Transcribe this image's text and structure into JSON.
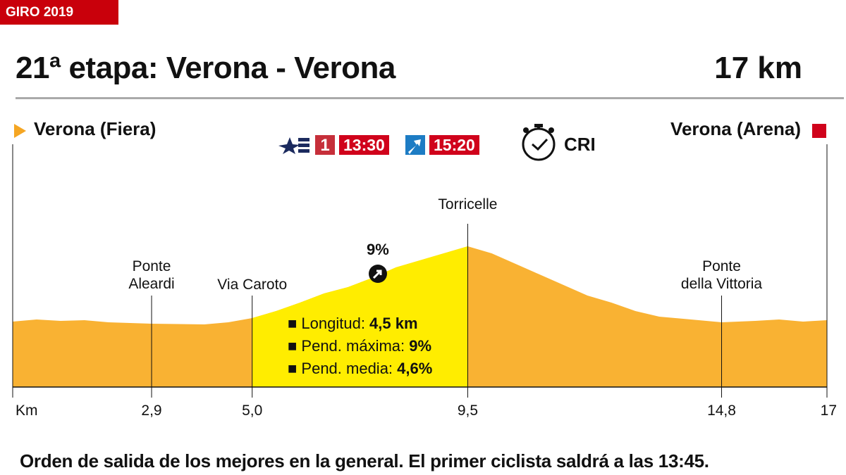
{
  "header": {
    "tag": "GIRO 2019",
    "title": "21ª etapa: Verona - Verona",
    "distance": "17 km"
  },
  "start": "Verona (Fiera)",
  "finish": "Verona (Arena)",
  "tv": {
    "channel1_time": "13:30",
    "channel2_time": "15:20",
    "stage_type": "CRI"
  },
  "colors": {
    "profile": "#f9b233",
    "climb": "#ffed00",
    "red": "#d0021b",
    "start_marker": "#f5a623"
  },
  "climb": {
    "gradient_label": "9%",
    "items": [
      {
        "label": "Longitud: ",
        "value": "4,5 km"
      },
      {
        "label": "Pend. máxima: ",
        "value": "9%"
      },
      {
        "label": "Pend. media: ",
        "value": "4,6%"
      }
    ]
  },
  "footer": "Orden de salida de los mejores en la general. El primer ciclista saldrá a las 13:45.",
  "chart_data": {
    "type": "area",
    "xlabel": "Km",
    "xlim": [
      0,
      17
    ],
    "x_ticks": [
      "2,9",
      "5,0",
      "9,5",
      "14,8",
      "17"
    ],
    "x_tick_values": [
      2.9,
      5.0,
      9.5,
      14.8,
      17
    ],
    "climb_range": [
      5.0,
      9.5
    ],
    "landmarks": [
      {
        "km": 2.9,
        "l1": "Ponte",
        "l2": "Aleardi"
      },
      {
        "km": 5.0,
        "l1": "Via Caroto",
        "l2": ""
      },
      {
        "km": 9.5,
        "l1": "Torricelle",
        "l2": ""
      },
      {
        "km": 14.8,
        "l1": "Ponte",
        "l2": "della Vittoria"
      }
    ],
    "profile_km": [
      0,
      0.5,
      1,
      1.5,
      2,
      2.9,
      4,
      4.5,
      5,
      5.5,
      6,
      6.5,
      7,
      7.5,
      8,
      8.5,
      9,
      9.5,
      10,
      10.5,
      11,
      11.5,
      12,
      12.5,
      13,
      13.5,
      14,
      14.8,
      15.5,
      16,
      16.5,
      17
    ],
    "profile_relative_elevation": [
      93,
      96,
      94,
      95,
      92,
      90,
      89,
      92,
      98,
      108,
      120,
      133,
      142,
      155,
      170,
      180,
      190,
      200,
      190,
      175,
      160,
      145,
      130,
      120,
      108,
      100,
      97,
      92,
      94,
      96,
      93,
      95
    ]
  }
}
